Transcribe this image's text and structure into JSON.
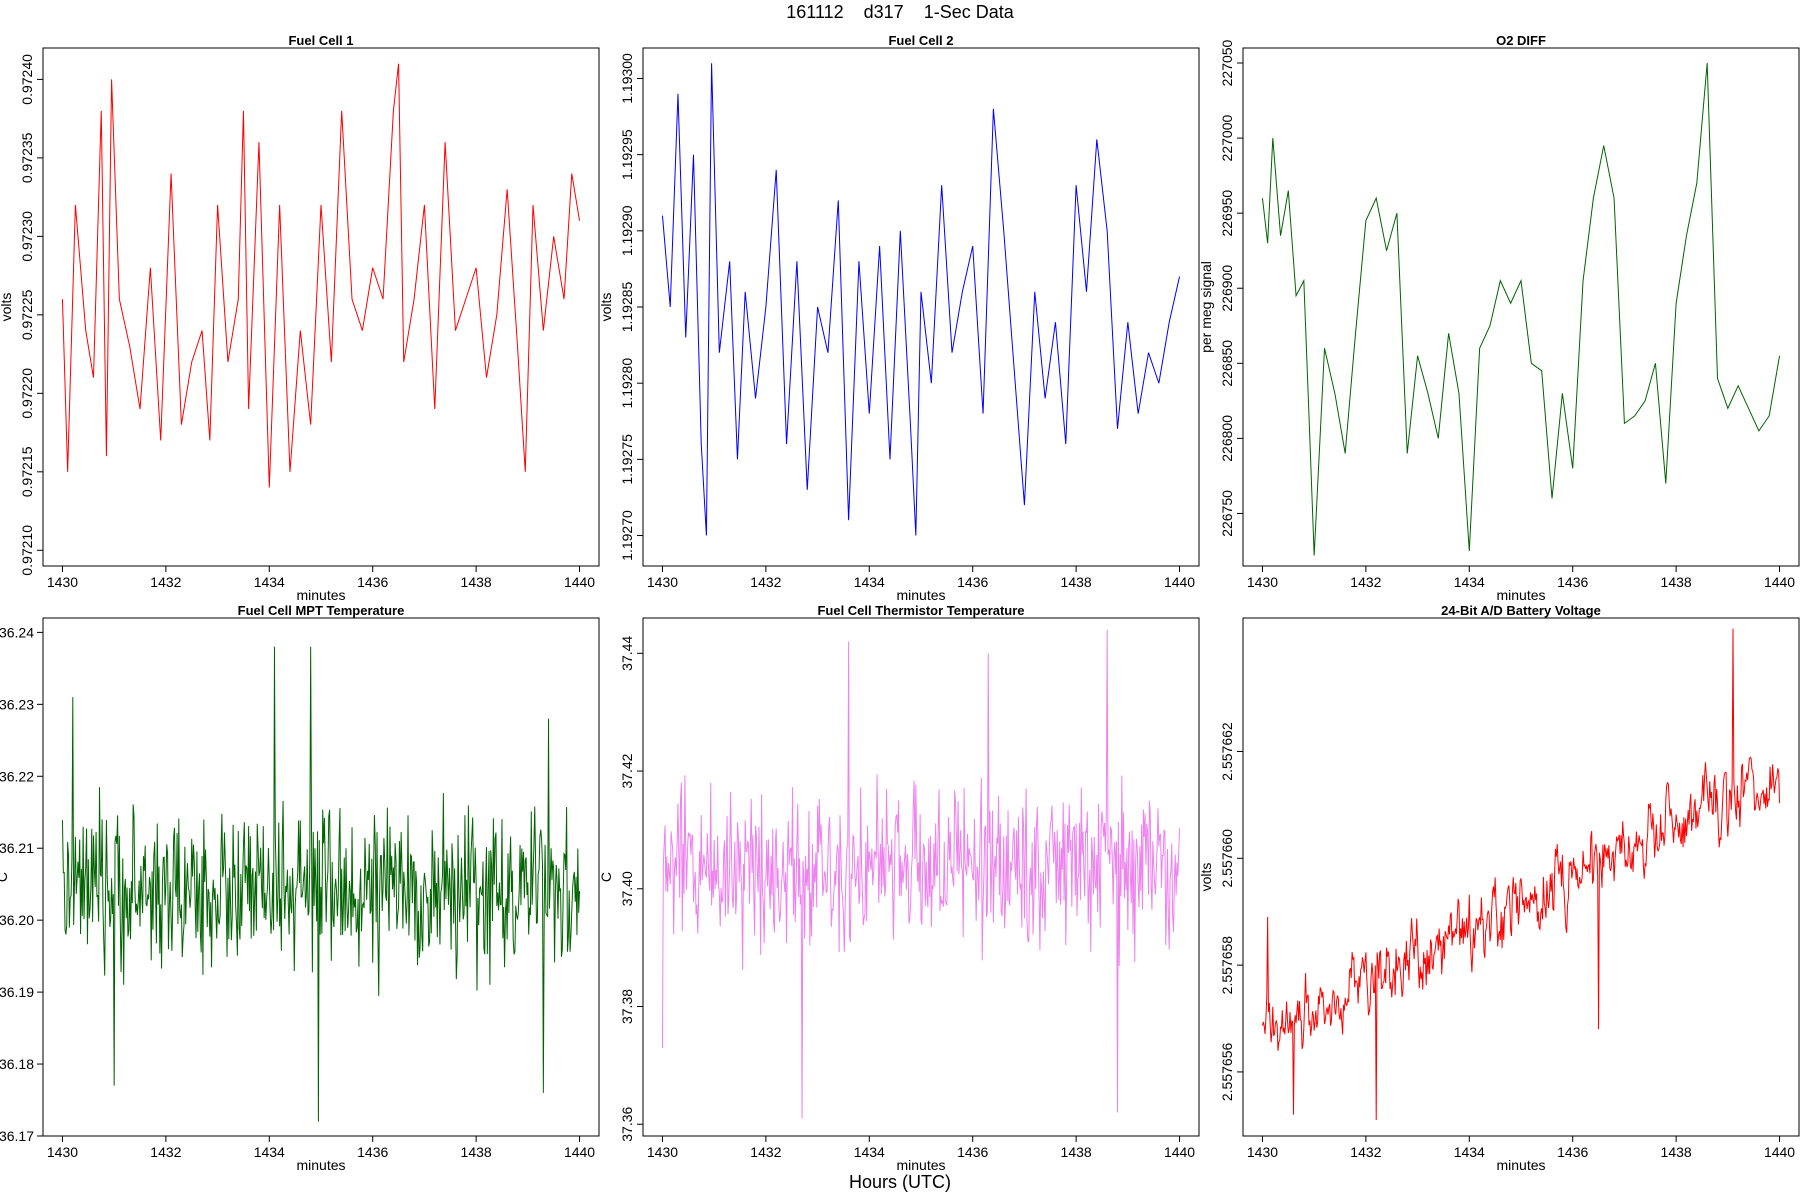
{
  "figure": {
    "title": "161112    d317    1-Sec Data",
    "xlabel": "Hours (UTC)"
  },
  "chart_data": [
    {
      "type": "line",
      "title": "Fuel Cell 1",
      "xlabel": "minutes",
      "ylabel": "volts",
      "color": "#ff0000",
      "xlim": [
        1430,
        1440
      ],
      "ylim": [
        0.97209,
        0.97242
      ],
      "xticks": [
        1430,
        1432,
        1434,
        1436,
        1438,
        1440
      ],
      "yticks": [
        0.9721,
        0.97215,
        0.9722,
        0.97225,
        0.9723,
        0.97235,
        0.9724
      ],
      "ytick_labels": [
        "0.97210",
        "0.97215",
        "0.97220",
        "0.97225",
        "0.97230",
        "0.97235",
        "0.97240"
      ],
      "ylabel_rotated": true,
      "ticks_rotated": true,
      "series": [
        {
          "x": [
            1430.0,
            1430.1,
            1430.25,
            1430.45,
            1430.6,
            1430.75,
            1430.85,
            1430.95,
            1431.1,
            1431.3,
            1431.5,
            1431.7,
            1431.9,
            1432.1,
            1432.3,
            1432.5,
            1432.7,
            1432.85,
            1433.0,
            1433.2,
            1433.4,
            1433.5,
            1433.6,
            1433.8,
            1434.0,
            1434.2,
            1434.4,
            1434.6,
            1434.8,
            1435.0,
            1435.2,
            1435.4,
            1435.6,
            1435.8,
            1436.0,
            1436.2,
            1436.4,
            1436.5,
            1436.6,
            1436.8,
            1437.0,
            1437.2,
            1437.4,
            1437.6,
            1437.8,
            1438.0,
            1438.2,
            1438.4,
            1438.6,
            1438.8,
            1438.95,
            1439.1,
            1439.3,
            1439.5,
            1439.7,
            1439.85,
            1440.0
          ],
          "y": [
            0.97226,
            0.97215,
            0.97232,
            0.97224,
            0.97221,
            0.97238,
            0.97216,
            0.9724,
            0.97226,
            0.97223,
            0.97219,
            0.97228,
            0.97217,
            0.97234,
            0.97218,
            0.97222,
            0.97224,
            0.97217,
            0.97232,
            0.97222,
            0.97226,
            0.97238,
            0.97219,
            0.97236,
            0.97214,
            0.97232,
            0.97215,
            0.97224,
            0.97218,
            0.97232,
            0.97222,
            0.97238,
            0.97226,
            0.97224,
            0.97228,
            0.97226,
            0.97238,
            0.97241,
            0.97222,
            0.97226,
            0.97232,
            0.97219,
            0.97236,
            0.97224,
            0.97226,
            0.97228,
            0.97221,
            0.97225,
            0.97233,
            0.97223,
            0.97215,
            0.97232,
            0.97224,
            0.9723,
            0.97226,
            0.97234,
            0.97231
          ]
        }
      ]
    },
    {
      "type": "line",
      "title": "Fuel Cell 2",
      "xlabel": "minutes",
      "ylabel": "volts",
      "color": "#0000ff",
      "xlim": [
        1430,
        1440
      ],
      "ylim": [
        1.19268,
        1.19302
      ],
      "xticks": [
        1430,
        1432,
        1434,
        1436,
        1438,
        1440
      ],
      "yticks": [
        1.1927,
        1.19275,
        1.1928,
        1.19285,
        1.1929,
        1.19295,
        1.193
      ],
      "ytick_labels": [
        "1.19270",
        "1.19275",
        "1.19280",
        "1.19285",
        "1.19290",
        "1.19295",
        "1.19300"
      ],
      "ylabel_rotated": true,
      "ticks_rotated": true,
      "series": [
        {
          "x": [
            1430.0,
            1430.15,
            1430.3,
            1430.45,
            1430.6,
            1430.75,
            1430.85,
            1430.95,
            1431.1,
            1431.3,
            1431.45,
            1431.6,
            1431.8,
            1432.0,
            1432.2,
            1432.4,
            1432.6,
            1432.8,
            1433.0,
            1433.2,
            1433.4,
            1433.6,
            1433.8,
            1434.0,
            1434.2,
            1434.4,
            1434.6,
            1434.8,
            1434.9,
            1435.0,
            1435.2,
            1435.4,
            1435.6,
            1435.8,
            1436.0,
            1436.2,
            1436.4,
            1436.6,
            1436.8,
            1437.0,
            1437.2,
            1437.4,
            1437.6,
            1437.8,
            1438.0,
            1438.2,
            1438.4,
            1438.6,
            1438.8,
            1439.0,
            1439.2,
            1439.4,
            1439.6,
            1439.8,
            1440.0
          ],
          "y": [
            1.19291,
            1.19285,
            1.19299,
            1.19283,
            1.19295,
            1.19276,
            1.1927,
            1.19301,
            1.19282,
            1.19288,
            1.19275,
            1.19286,
            1.19279,
            1.19285,
            1.19294,
            1.19276,
            1.19288,
            1.19273,
            1.19285,
            1.19282,
            1.19292,
            1.19271,
            1.19288,
            1.19278,
            1.19289,
            1.19275,
            1.1929,
            1.19277,
            1.1927,
            1.19286,
            1.1928,
            1.19293,
            1.19282,
            1.19286,
            1.19289,
            1.19278,
            1.19298,
            1.1929,
            1.19281,
            1.19272,
            1.19286,
            1.19279,
            1.19284,
            1.19276,
            1.19293,
            1.19286,
            1.19296,
            1.1929,
            1.19277,
            1.19284,
            1.19278,
            1.19282,
            1.1928,
            1.19284,
            1.19287
          ]
        }
      ]
    },
    {
      "type": "line",
      "title": "O2 DIFF",
      "xlabel": "minutes",
      "ylabel": "per meg signal",
      "color": "#006400",
      "xlim": [
        1430,
        1440
      ],
      "ylim": [
        226715,
        227060
      ],
      "xticks": [
        1430,
        1432,
        1434,
        1436,
        1438,
        1440
      ],
      "yticks": [
        226750,
        226800,
        226850,
        226900,
        226950,
        227000,
        227050
      ],
      "ytick_labels": [
        "226750",
        "226800",
        "226850",
        "226900",
        "226950",
        "227000",
        "227050"
      ],
      "ylabel_rotated": true,
      "ticks_rotated": true,
      "series": [
        {
          "x": [
            1430.0,
            1430.1,
            1430.2,
            1430.35,
            1430.5,
            1430.65,
            1430.8,
            1430.9,
            1431.0,
            1431.2,
            1431.4,
            1431.6,
            1431.8,
            1432.0,
            1432.2,
            1432.4,
            1432.6,
            1432.8,
            1433.0,
            1433.2,
            1433.4,
            1433.6,
            1433.8,
            1434.0,
            1434.2,
            1434.4,
            1434.6,
            1434.8,
            1435.0,
            1435.2,
            1435.4,
            1435.6,
            1435.8,
            1436.0,
            1436.2,
            1436.4,
            1436.6,
            1436.8,
            1437.0,
            1437.2,
            1437.4,
            1437.6,
            1437.8,
            1438.0,
            1438.2,
            1438.4,
            1438.6,
            1438.8,
            1439.0,
            1439.2,
            1439.4,
            1439.6,
            1439.8,
            1440.0
          ],
          "y": [
            226960,
            226930,
            227000,
            226935,
            226965,
            226895,
            226905,
            226815,
            226722,
            226860,
            226830,
            226790,
            226870,
            226945,
            226960,
            226925,
            226950,
            226790,
            226855,
            226830,
            226800,
            226870,
            226830,
            226725,
            226860,
            226875,
            226905,
            226890,
            226905,
            226850,
            226845,
            226760,
            226830,
            226780,
            226905,
            226960,
            226995,
            226960,
            226810,
            226815,
            226825,
            226850,
            226770,
            226890,
            226935,
            226970,
            227050,
            226840,
            226820,
            226835,
            226820,
            226805,
            226815,
            226855
          ]
        }
      ]
    },
    {
      "type": "line",
      "title": "Fuel Cell MPT Temperature",
      "xlabel": "minutes",
      "ylabel": "C",
      "color": "#006400",
      "xlim": [
        1430,
        1440
      ],
      "ylim": [
        36.17,
        36.242
      ],
      "xticks": [
        1430,
        1432,
        1434,
        1436,
        1438,
        1440
      ],
      "yticks": [
        36.17,
        36.18,
        36.19,
        36.2,
        36.21,
        36.22,
        36.23,
        36.24
      ],
      "ytick_labels": [
        "36.17",
        "36.18",
        "36.19",
        "36.20",
        "36.21",
        "36.22",
        "36.23",
        "36.24"
      ],
      "ylabel_rotated": false,
      "ticks_rotated": false,
      "noise": {
        "center": 36.204,
        "amplitude": 0.016,
        "count": 600
      },
      "extremes": [
        [
          1430.2,
          36.231
        ],
        [
          1431.0,
          36.177
        ],
        [
          1434.1,
          36.238
        ],
        [
          1434.8,
          36.238
        ],
        [
          1434.95,
          36.172
        ],
        [
          1439.3,
          36.176
        ],
        [
          1439.4,
          36.228
        ]
      ]
    },
    {
      "type": "line",
      "title": "Fuel Cell Thermistor Temperature",
      "xlabel": "minutes",
      "ylabel": "C",
      "color": "#ee82ee",
      "xlim": [
        1430,
        1440
      ],
      "ylim": [
        37.358,
        37.446
      ],
      "xticks": [
        1430,
        1432,
        1434,
        1436,
        1438,
        1440
      ],
      "yticks": [
        37.36,
        37.38,
        37.4,
        37.42,
        37.44
      ],
      "ytick_labels": [
        "37.36",
        "37.38",
        "37.40",
        "37.42",
        "37.44"
      ],
      "ylabel_rotated": false,
      "ticks_rotated": true,
      "noise": {
        "center": 37.404,
        "amplitude": 0.02,
        "count": 600
      },
      "extremes": [
        [
          1430.0,
          37.373
        ],
        [
          1432.7,
          37.361
        ],
        [
          1433.6,
          37.442
        ],
        [
          1436.3,
          37.44
        ],
        [
          1438.6,
          37.444
        ],
        [
          1438.8,
          37.362
        ]
      ]
    },
    {
      "type": "line",
      "title": "24-Bit A/D Battery Voltage",
      "xlabel": "minutes",
      "ylabel": "volts",
      "color": "#ff0000",
      "xlim": [
        1430,
        1440
      ],
      "ylim": [
        2.5576548,
        2.5576645
      ],
      "xticks": [
        1430,
        1432,
        1434,
        1436,
        1438,
        1440
      ],
      "yticks": [
        2.557656,
        2.557658,
        2.55766,
        2.557662
      ],
      "ytick_labels": [
        "2.557656",
        "2.557658",
        "2.557660",
        "2.557662"
      ],
      "ylabel_rotated": false,
      "ticks_rotated": true,
      "trend": {
        "start": 2.5576568,
        "end": 2.5576615,
        "amplitude": 1.4e-06,
        "count": 600
      },
      "extremes": [
        [
          1430.1,
          2.5576589
        ],
        [
          1430.6,
          2.5576552
        ],
        [
          1432.2,
          2.5576551
        ],
        [
          1436.5,
          2.5576568
        ],
        [
          1439.1,
          2.5576643
        ]
      ]
    }
  ]
}
